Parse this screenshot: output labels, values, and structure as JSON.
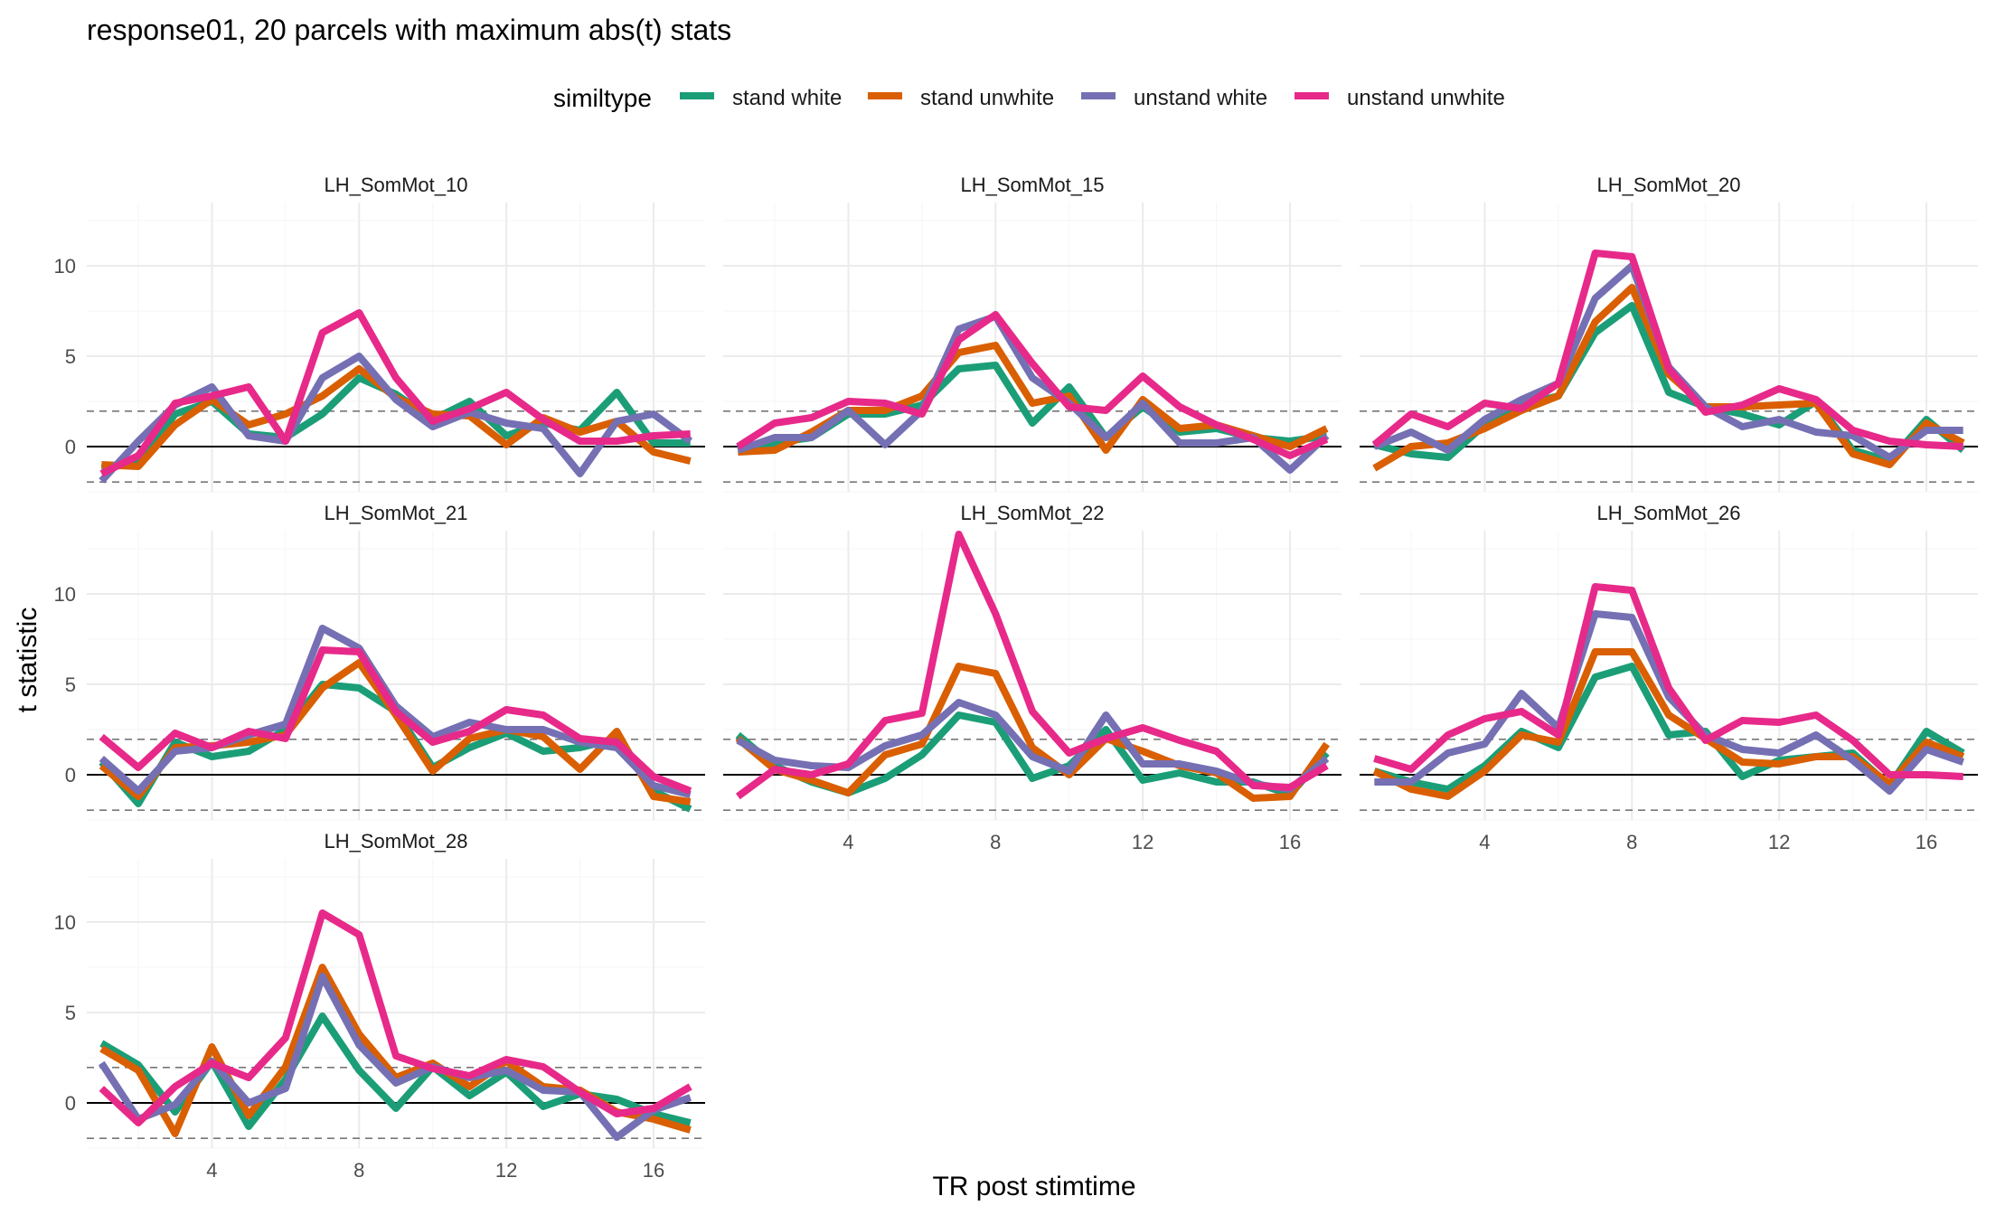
{
  "chart_data": {
    "type": "line",
    "title": "response01, 20 parcels with maximum abs(t) stats",
    "xlabel": "TR post stimtime",
    "ylabel": "t statistic",
    "legend": {
      "title": "similtype",
      "position": "top"
    },
    "xlim": [
      0.6,
      17.4
    ],
    "ylim": [
      -2.5,
      13.5
    ],
    "x_ticks": [
      4,
      8,
      12,
      16
    ],
    "y_ticks": [
      0,
      5,
      10
    ],
    "reference_lines": {
      "solid": [
        0
      ],
      "dashed": [
        -1.96,
        1.96
      ]
    },
    "grid": true,
    "x": [
      1,
      2,
      3,
      4,
      5,
      6,
      7,
      8,
      9,
      10,
      11,
      12,
      13,
      14,
      15,
      16,
      17
    ],
    "series": [
      {
        "name": "stand white",
        "color": "#1B9E77"
      },
      {
        "name": "stand unwhite",
        "color": "#D95F02"
      },
      {
        "name": "unstand white",
        "color": "#7570B3"
      },
      {
        "name": "unstand unwhite",
        "color": "#E7298A"
      }
    ],
    "panels": [
      {
        "label": "LH_SomMot_10",
        "values": [
          [
            -1.2,
            -0.9,
            1.8,
            2.5,
            0.7,
            0.5,
            1.8,
            3.8,
            2.9,
            1.5,
            2.5,
            0.6,
            1.3,
            0.9,
            3.0,
            0.2,
            0.2
          ],
          [
            -1.0,
            -1.1,
            1.2,
            2.6,
            1.2,
            1.8,
            2.8,
            4.3,
            2.7,
            1.8,
            1.7,
            0.1,
            1.6,
            0.8,
            1.4,
            -0.3,
            -0.8
          ],
          [
            -1.9,
            0.3,
            2.3,
            3.3,
            0.6,
            0.3,
            3.8,
            5.0,
            2.6,
            1.1,
            1.9,
            1.3,
            1.0,
            -1.5,
            1.4,
            1.8,
            0.3
          ],
          [
            -1.5,
            -0.5,
            2.4,
            2.8,
            3.3,
            0.3,
            6.3,
            7.4,
            3.8,
            1.4,
            2.1,
            3.0,
            1.5,
            0.3,
            0.3,
            0.6,
            0.7
          ]
        ]
      },
      {
        "label": "LH_SomMot_15",
        "values": [
          [
            -0.2,
            0.2,
            0.5,
            1.8,
            1.8,
            2.3,
            4.3,
            4.5,
            1.3,
            3.3,
            0.5,
            2.2,
            0.8,
            1.0,
            0.5,
            0.3,
            0.6
          ],
          [
            -0.3,
            -0.2,
            0.8,
            2.0,
            2.0,
            2.8,
            5.2,
            5.6,
            2.4,
            2.8,
            -0.2,
            2.6,
            1.0,
            1.2,
            0.6,
            0.0,
            1.0
          ],
          [
            -0.2,
            0.5,
            0.5,
            2.0,
            0.1,
            2.0,
            6.5,
            7.2,
            3.8,
            2.4,
            0.5,
            2.4,
            0.2,
            0.2,
            0.5,
            -1.3,
            0.6
          ],
          [
            0.0,
            1.3,
            1.6,
            2.5,
            2.4,
            1.8,
            5.9,
            7.3,
            4.6,
            2.2,
            2.0,
            3.9,
            2.2,
            1.2,
            0.4,
            -0.5,
            0.4
          ]
        ]
      },
      {
        "label": "LH_SomMot_20",
        "values": [
          [
            0.1,
            -0.4,
            -0.6,
            1.2,
            2.3,
            2.8,
            6.3,
            7.8,
            3.0,
            2.2,
            1.8,
            1.2,
            2.5,
            -0.2,
            -0.8,
            1.5,
            -0.2
          ],
          [
            -1.2,
            0.0,
            0.2,
            1.0,
            2.0,
            2.8,
            6.9,
            8.8,
            4.0,
            2.2,
            2.2,
            2.3,
            2.4,
            -0.4,
            -1.0,
            1.3,
            0.2
          ],
          [
            0.0,
            0.8,
            -0.2,
            1.5,
            2.6,
            3.5,
            8.2,
            10.0,
            4.4,
            2.2,
            1.1,
            1.5,
            0.8,
            0.6,
            -0.6,
            0.9,
            0.9
          ],
          [
            0.1,
            1.8,
            1.1,
            2.4,
            2.1,
            3.5,
            10.7,
            10.5,
            4.3,
            1.9,
            2.3,
            3.2,
            2.6,
            0.9,
            0.3,
            0.1,
            0.0
          ]
        ]
      },
      {
        "label": "LH_SomMot_21",
        "values": [
          [
            0.7,
            -1.6,
            1.8,
            1.0,
            1.3,
            2.5,
            5.0,
            4.8,
            3.5,
            0.4,
            1.5,
            2.3,
            1.3,
            1.5,
            2.0,
            -0.9,
            -1.9
          ],
          [
            0.5,
            -1.2,
            1.5,
            1.6,
            1.8,
            2.2,
            4.8,
            6.2,
            3.3,
            0.2,
            2.0,
            2.5,
            2.1,
            0.3,
            2.4,
            -1.2,
            -1.5
          ],
          [
            0.9,
            -0.9,
            1.3,
            1.5,
            2.2,
            2.8,
            8.1,
            7.0,
            3.8,
            2.1,
            2.9,
            2.5,
            2.5,
            1.8,
            1.5,
            -0.6,
            -1.1
          ],
          [
            2.1,
            0.4,
            2.3,
            1.5,
            2.4,
            2.0,
            6.9,
            6.8,
            3.5,
            1.8,
            2.4,
            3.6,
            3.3,
            2.0,
            1.8,
            -0.1,
            -0.9
          ]
        ]
      },
      {
        "label": "LH_SomMot_22",
        "values": [
          [
            2.2,
            0.5,
            -0.4,
            -1.0,
            -0.2,
            1.1,
            3.3,
            2.9,
            -0.2,
            0.5,
            2.5,
            -0.3,
            0.1,
            -0.4,
            -0.4,
            -1.1,
            1.2
          ],
          [
            2.0,
            0.3,
            -0.3,
            -1.0,
            1.1,
            1.7,
            6.0,
            5.6,
            1.5,
            0.0,
            2.0,
            1.3,
            0.5,
            0.1,
            -1.3,
            -1.2,
            1.7
          ],
          [
            1.9,
            0.8,
            0.5,
            0.4,
            1.6,
            2.2,
            4.0,
            3.3,
            1.0,
            0.2,
            3.3,
            0.6,
            0.6,
            0.2,
            -0.5,
            -0.8,
            0.9
          ],
          [
            -1.2,
            0.3,
            0.0,
            0.6,
            3.0,
            3.4,
            13.3,
            8.9,
            3.5,
            1.2,
            2.0,
            2.6,
            1.9,
            1.3,
            -0.6,
            -0.7,
            0.5
          ]
        ]
      },
      {
        "label": "LH_SomMot_26",
        "values": [
          [
            0.2,
            -0.4,
            -0.8,
            0.5,
            2.4,
            1.5,
            5.4,
            6.0,
            2.2,
            2.4,
            -0.1,
            0.8,
            1.0,
            1.2,
            -0.6,
            2.4,
            1.2
          ],
          [
            0.2,
            -0.8,
            -1.2,
            0.2,
            2.2,
            1.8,
            6.8,
            6.8,
            3.3,
            2.0,
            0.7,
            0.6,
            1.0,
            1.0,
            -0.5,
            1.8,
            1.0
          ],
          [
            -0.4,
            -0.4,
            1.2,
            1.7,
            4.5,
            2.6,
            8.9,
            8.7,
            4.3,
            2.2,
            1.4,
            1.2,
            2.2,
            0.8,
            -0.9,
            1.4,
            0.7
          ],
          [
            0.9,
            0.3,
            2.2,
            3.1,
            3.5,
            2.2,
            10.4,
            10.2,
            4.8,
            1.9,
            3.0,
            2.9,
            3.3,
            1.9,
            0.0,
            0.0,
            -0.1
          ]
        ]
      },
      {
        "label": "LH_SomMot_28",
        "values": [
          [
            3.3,
            2.1,
            -0.5,
            2.3,
            -1.3,
            1.3,
            4.8,
            1.8,
            -0.3,
            2.0,
            0.4,
            1.7,
            -0.2,
            0.5,
            0.2,
            -0.6,
            -1.1
          ],
          [
            3.0,
            1.8,
            -1.7,
            3.1,
            -0.7,
            2.0,
            7.5,
            3.8,
            1.4,
            2.2,
            0.9,
            2.3,
            0.9,
            0.7,
            -0.5,
            -0.9,
            -1.5
          ],
          [
            2.2,
            -0.9,
            -0.1,
            2.3,
            0.0,
            0.8,
            7.0,
            3.2,
            1.1,
            2.0,
            1.4,
            1.8,
            0.7,
            0.6,
            -1.9,
            -0.4,
            0.3
          ],
          [
            0.8,
            -1.1,
            0.9,
            2.2,
            1.4,
            3.6,
            10.5,
            9.3,
            2.6,
            1.9,
            1.5,
            2.4,
            2.0,
            0.6,
            -0.6,
            -0.3,
            0.9
          ]
        ]
      }
    ]
  }
}
